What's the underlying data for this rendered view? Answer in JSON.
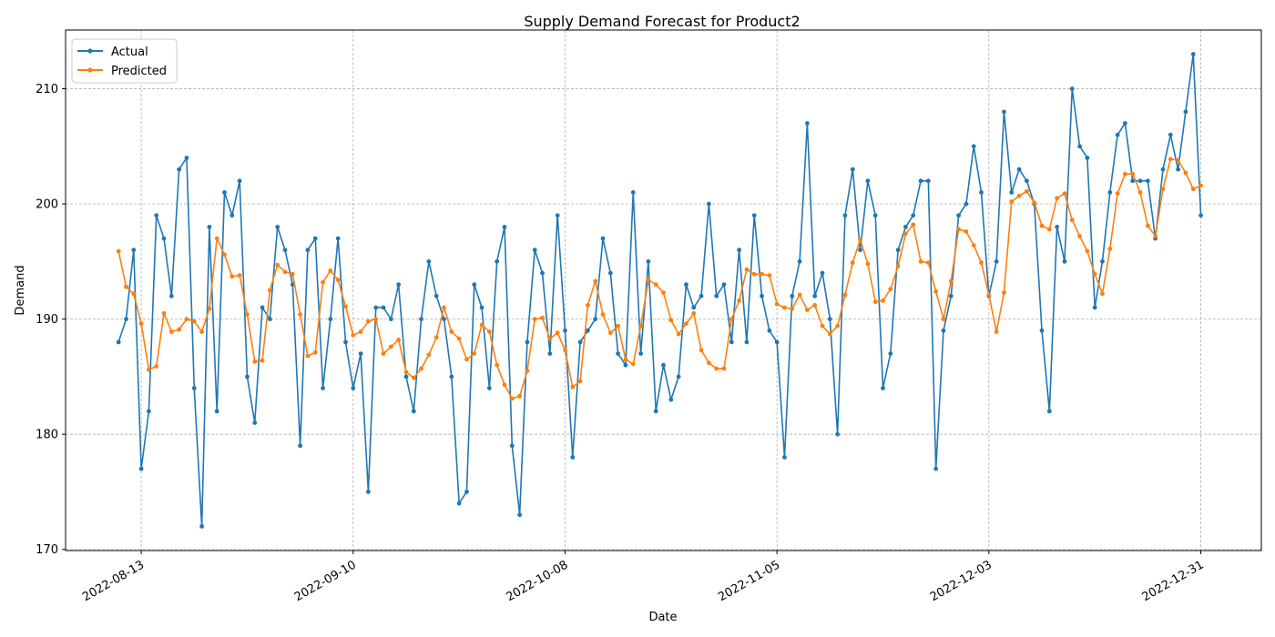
{
  "chart_data": {
    "type": "line",
    "title": "Supply Demand Forecast for Product2",
    "xlabel": "Date",
    "ylabel": "Demand",
    "x_start_date": "2022-08-10",
    "x_ticks": [
      "2022-08-13",
      "2022-09-10",
      "2022-10-08",
      "2022-11-05",
      "2022-12-03",
      "2022-12-31"
    ],
    "y_ticks": [
      170,
      180,
      190,
      200,
      210
    ],
    "ylim": [
      169.9,
      215.1
    ],
    "xlim": [
      "2022-08-03",
      "2023-01-08"
    ],
    "grid": true,
    "legend_position": "top-left",
    "series": [
      {
        "name": "Actual",
        "color": "#1f77b4",
        "values": [
          188,
          190,
          196,
          177,
          182,
          199,
          197,
          192,
          203,
          204,
          184,
          172,
          198,
          182,
          201,
          199,
          202,
          185,
          181,
          191,
          190,
          198,
          196,
          193,
          179,
          196,
          197,
          184,
          190,
          197,
          188,
          184,
          187,
          175,
          191,
          191,
          190,
          193,
          185,
          182,
          190,
          195,
          192,
          190,
          185,
          174,
          175,
          193,
          191,
          184,
          195,
          198,
          179,
          173,
          188,
          196,
          194,
          187,
          199,
          189,
          178,
          188,
          189,
          190,
          197,
          194,
          187,
          186,
          201,
          187,
          195,
          182,
          186,
          183,
          185,
          193,
          191,
          192,
          200,
          192,
          193,
          188,
          196,
          188,
          199,
          192,
          189,
          188,
          178,
          192,
          195,
          207,
          192,
          194,
          190,
          180,
          199,
          203,
          196,
          202,
          199,
          184,
          187,
          196,
          198,
          199,
          202,
          202,
          177,
          189,
          192,
          199,
          200,
          205,
          201,
          192,
          195,
          208,
          201,
          203,
          202,
          200,
          189,
          182,
          198,
          195,
          210,
          205,
          204,
          191,
          195,
          201,
          206,
          207,
          202,
          202,
          202,
          197,
          203,
          206,
          203,
          208,
          213,
          199
        ]
      },
      {
        "name": "Predicted",
        "color": "#ff7f0e",
        "values": [
          195.9,
          192.8,
          192.2,
          189.6,
          185.6,
          185.9,
          190.5,
          188.9,
          189.1,
          190.0,
          189.8,
          188.9,
          190.9,
          197.0,
          195.6,
          193.7,
          193.8,
          190.4,
          186.3,
          186.4,
          192.5,
          194.7,
          194.1,
          193.9,
          190.4,
          186.8,
          187.1,
          193.2,
          194.2,
          193.4,
          191.1,
          188.6,
          188.9,
          189.8,
          190.0,
          187.0,
          187.6,
          188.2,
          185.4,
          184.9,
          185.7,
          186.9,
          188.4,
          191.0,
          188.9,
          188.3,
          186.5,
          187.0,
          189.5,
          188.9,
          186.0,
          184.3,
          183.1,
          183.3,
          185.5,
          190.0,
          190.1,
          188.3,
          188.8,
          187.3,
          184.1,
          184.6,
          191.2,
          193.3,
          190.4,
          188.8,
          189.4,
          186.5,
          186.1,
          189.4,
          193.4,
          193.0,
          192.3,
          189.9,
          188.7,
          189.6,
          190.5,
          187.3,
          186.2,
          185.7,
          185.7,
          190.0,
          191.6,
          194.3,
          193.9,
          193.9,
          193.8,
          191.3,
          191.0,
          190.9,
          192.1,
          190.8,
          191.2,
          189.4,
          188.7,
          189.4,
          192.1,
          194.9,
          196.9,
          194.8,
          191.5,
          191.6,
          192.6,
          194.6,
          197.4,
          198.2,
          195.0,
          194.9,
          192.4,
          190.0,
          193.3,
          197.8,
          197.6,
          196.4,
          194.9,
          192.1,
          188.9,
          192.3,
          200.2,
          200.7,
          201.1,
          200.1,
          198.1,
          197.8,
          200.5,
          200.9,
          198.6,
          197.2,
          195.9,
          193.9,
          192.2,
          196.1,
          200.9,
          202.6,
          202.6,
          201.0,
          198.1,
          197.2,
          201.3,
          203.9,
          203.8,
          202.7,
          201.3,
          201.6
        ]
      }
    ]
  }
}
